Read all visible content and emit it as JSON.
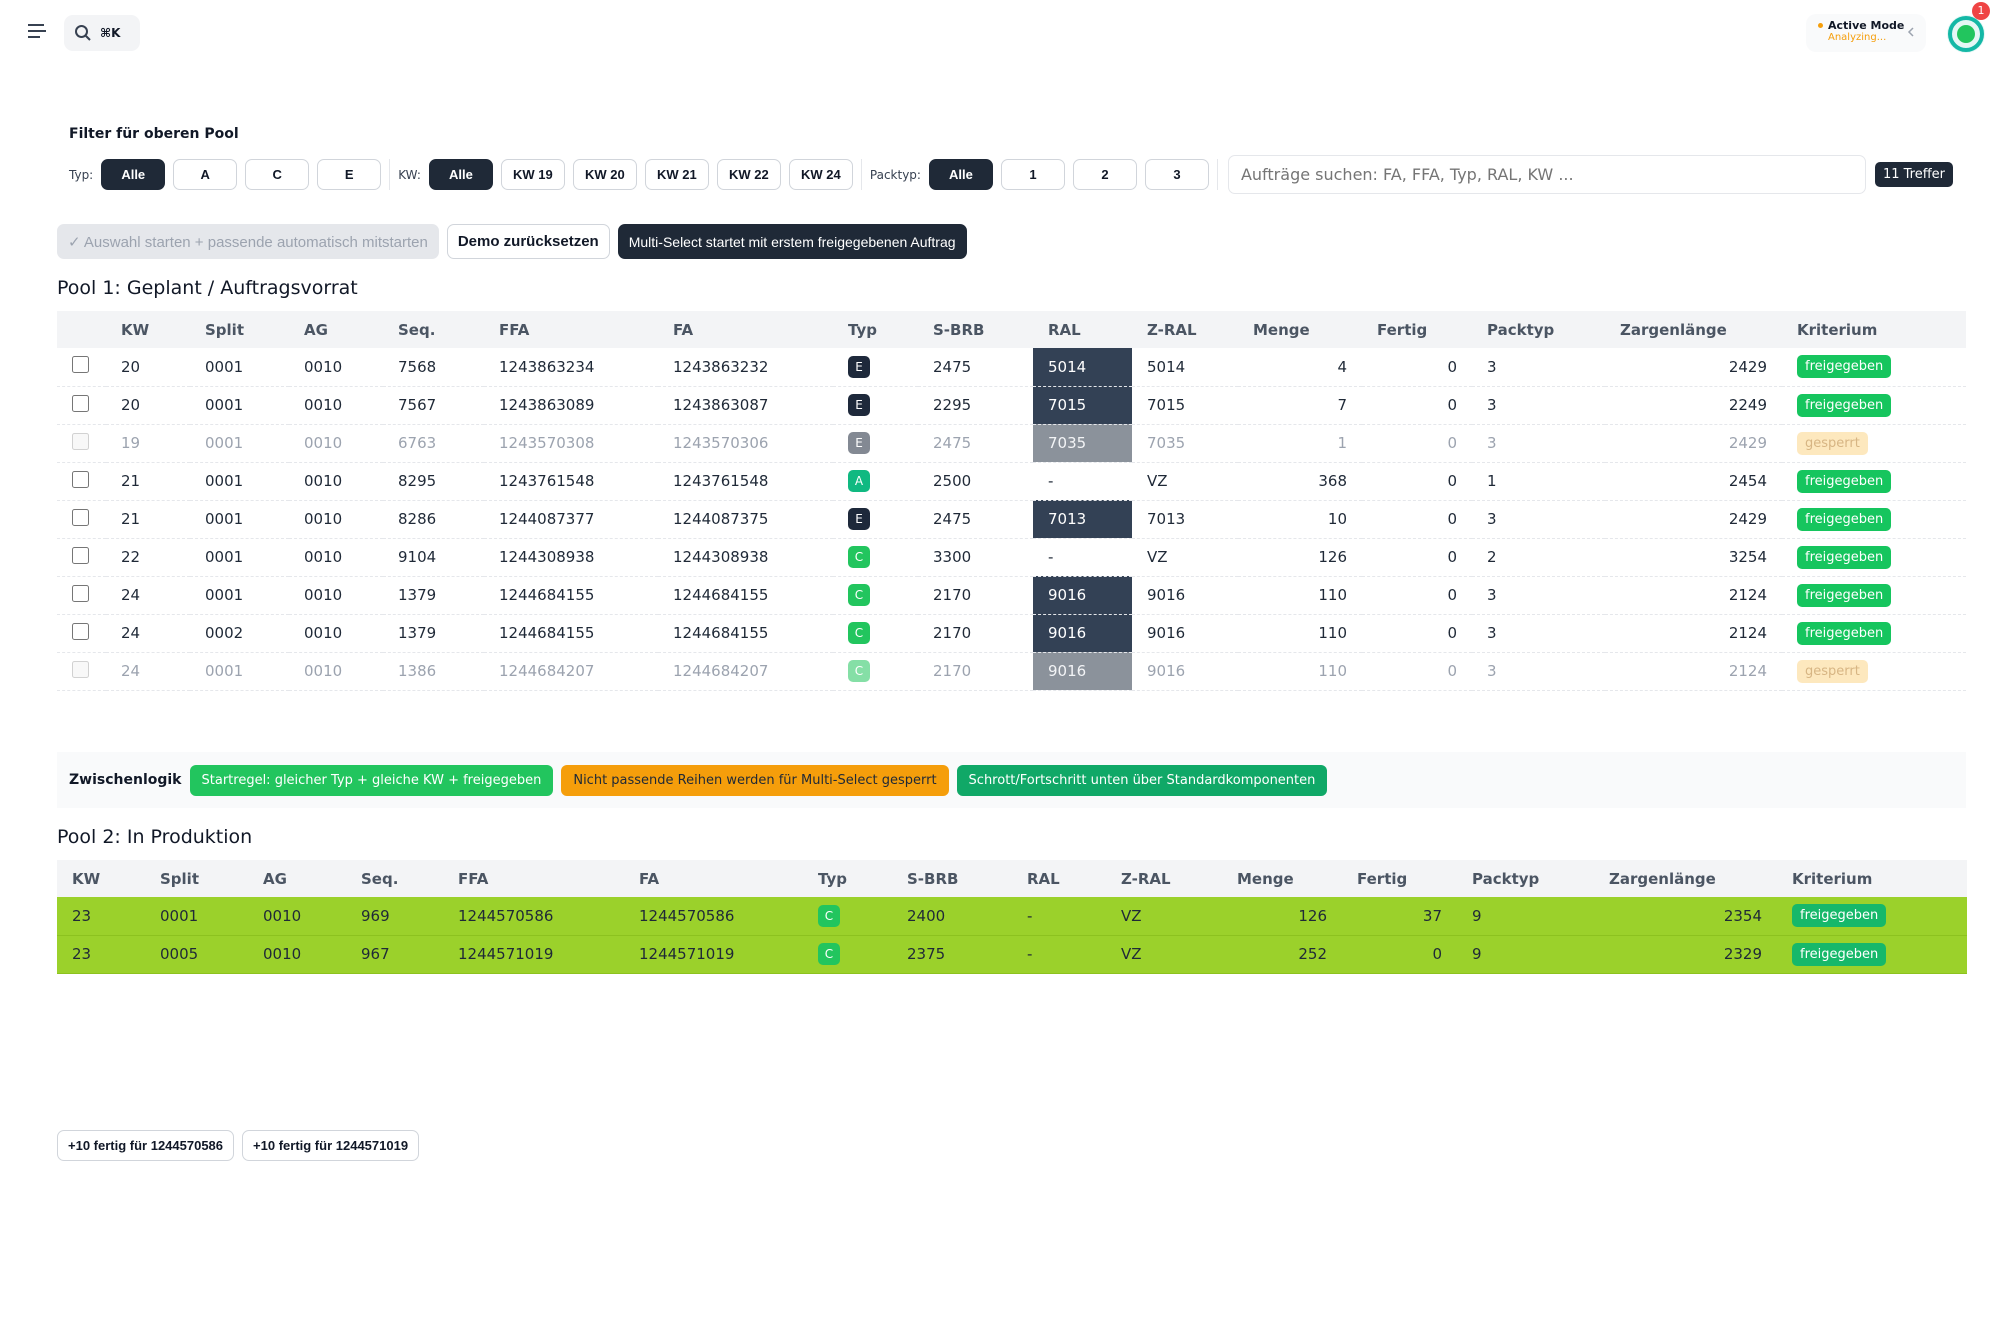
{
  "header": {
    "shortcut": "⌘K",
    "status_title": "Active Mode",
    "status_sub": "Analyzing...",
    "notification": "1"
  },
  "filter": {
    "title": "Filter für oberen Pool",
    "groups": [
      {
        "label": "Typ:",
        "options": [
          "Alle",
          "A",
          "C",
          "E"
        ]
      },
      {
        "label": "KW:",
        "options": [
          "Alle",
          "KW 19",
          "KW 20",
          "KW 21",
          "KW 22",
          "KW 24"
        ]
      },
      {
        "label": "Packtyp:",
        "options": [
          "Alle",
          "1",
          "2",
          "3"
        ]
      }
    ],
    "search_placeholder": "Aufträge suchen: FA, FFA, Typ, RAL, KW ...",
    "hits": "11 Treffer"
  },
  "actions": [
    "✓ Auswahl starten + passende automatisch mitstarten",
    "Demo zurücksetzen",
    "Multi-Select startet mit erstem freigegebenen Auftrag"
  ],
  "pool1": {
    "title": "Pool 1: Geplant / Auftragsvorrat",
    "columns": [
      "KW",
      "Split",
      "AG",
      "Seq.",
      "FFA",
      "FA",
      "Typ",
      "S-BRB",
      "RAL",
      "Z-RAL",
      "Menge",
      "Fertig",
      "Packtyp",
      "Zargenlänge",
      "Kriterium"
    ],
    "rows": [
      [
        "20",
        "0001",
        "0010",
        "7568",
        "1243863234",
        "1243863232",
        "E",
        "2475",
        "5014",
        "5014",
        "4",
        "0",
        "3",
        "2429",
        "freigegeben"
      ],
      [
        "20",
        "0001",
        "0010",
        "7567",
        "1243863089",
        "1243863087",
        "E",
        "2295",
        "7015",
        "7015",
        "7",
        "0",
        "3",
        "2249",
        "freigegeben"
      ],
      [
        "19",
        "0001",
        "0010",
        "6763",
        "1243570308",
        "1243570306",
        "E",
        "2475",
        "7035",
        "7035",
        "1",
        "0",
        "3",
        "2429",
        "gesperrt"
      ],
      [
        "21",
        "0001",
        "0010",
        "8295",
        "1243761548",
        "1243761548",
        "A",
        "2500",
        "-",
        "VZ",
        "368",
        "0",
        "1",
        "2454",
        "freigegeben"
      ],
      [
        "21",
        "0001",
        "0010",
        "8286",
        "1244087377",
        "1244087375",
        "E",
        "2475",
        "7013",
        "7013",
        "10",
        "0",
        "3",
        "2429",
        "freigegeben"
      ],
      [
        "22",
        "0001",
        "0010",
        "9104",
        "1244308938",
        "1244308938",
        "C",
        "3300",
        "-",
        "VZ",
        "126",
        "0",
        "2",
        "3254",
        "freigegeben"
      ],
      [
        "24",
        "0001",
        "0010",
        "1379",
        "1244684155",
        "1244684155",
        "C",
        "2170",
        "9016",
        "9016",
        "110",
        "0",
        "3",
        "2124",
        "freigegeben"
      ],
      [
        "24",
        "0002",
        "0010",
        "1379",
        "1244684155",
        "1244684155",
        "C",
        "2170",
        "9016",
        "9016",
        "110",
        "0",
        "3",
        "2124",
        "freigegeben"
      ],
      [
        "24",
        "0001",
        "0010",
        "1386",
        "1244684207",
        "1244684207",
        "C",
        "2170",
        "9016",
        "9016",
        "110",
        "0",
        "3",
        "2124",
        "gesperrt"
      ]
    ]
  },
  "logic": {
    "label": "Zwischenlogik",
    "chips": [
      "Startregel: gleicher Typ + gleiche KW + freigegeben",
      "Nicht passende Reihen werden für Multi-Select gesperrt",
      "Schrott/Fortschritt unten über Standardkomponenten"
    ]
  },
  "pool2": {
    "title": "Pool 2: In Produktion",
    "columns": [
      "KW",
      "Split",
      "AG",
      "Seq.",
      "FFA",
      "FA",
      "Typ",
      "S-BRB",
      "RAL",
      "Z-RAL",
      "Menge",
      "Fertig",
      "Packtyp",
      "Zargenlänge",
      "Kriterium"
    ],
    "rows": [
      [
        "23",
        "0001",
        "0010",
        "969",
        "1244570586",
        "1244570586",
        "C",
        "2400",
        "-",
        "VZ",
        "126",
        "37",
        "9",
        "2354",
        "freigegeben"
      ],
      [
        "23",
        "0005",
        "0010",
        "967",
        "1244571019",
        "1244571019",
        "C",
        "2375",
        "-",
        "VZ",
        "252",
        "0",
        "9",
        "2329",
        "freigegeben"
      ]
    ]
  },
  "footer": [
    "+10 fertig für 1244570586",
    "+10 fertig für 1244571019"
  ]
}
